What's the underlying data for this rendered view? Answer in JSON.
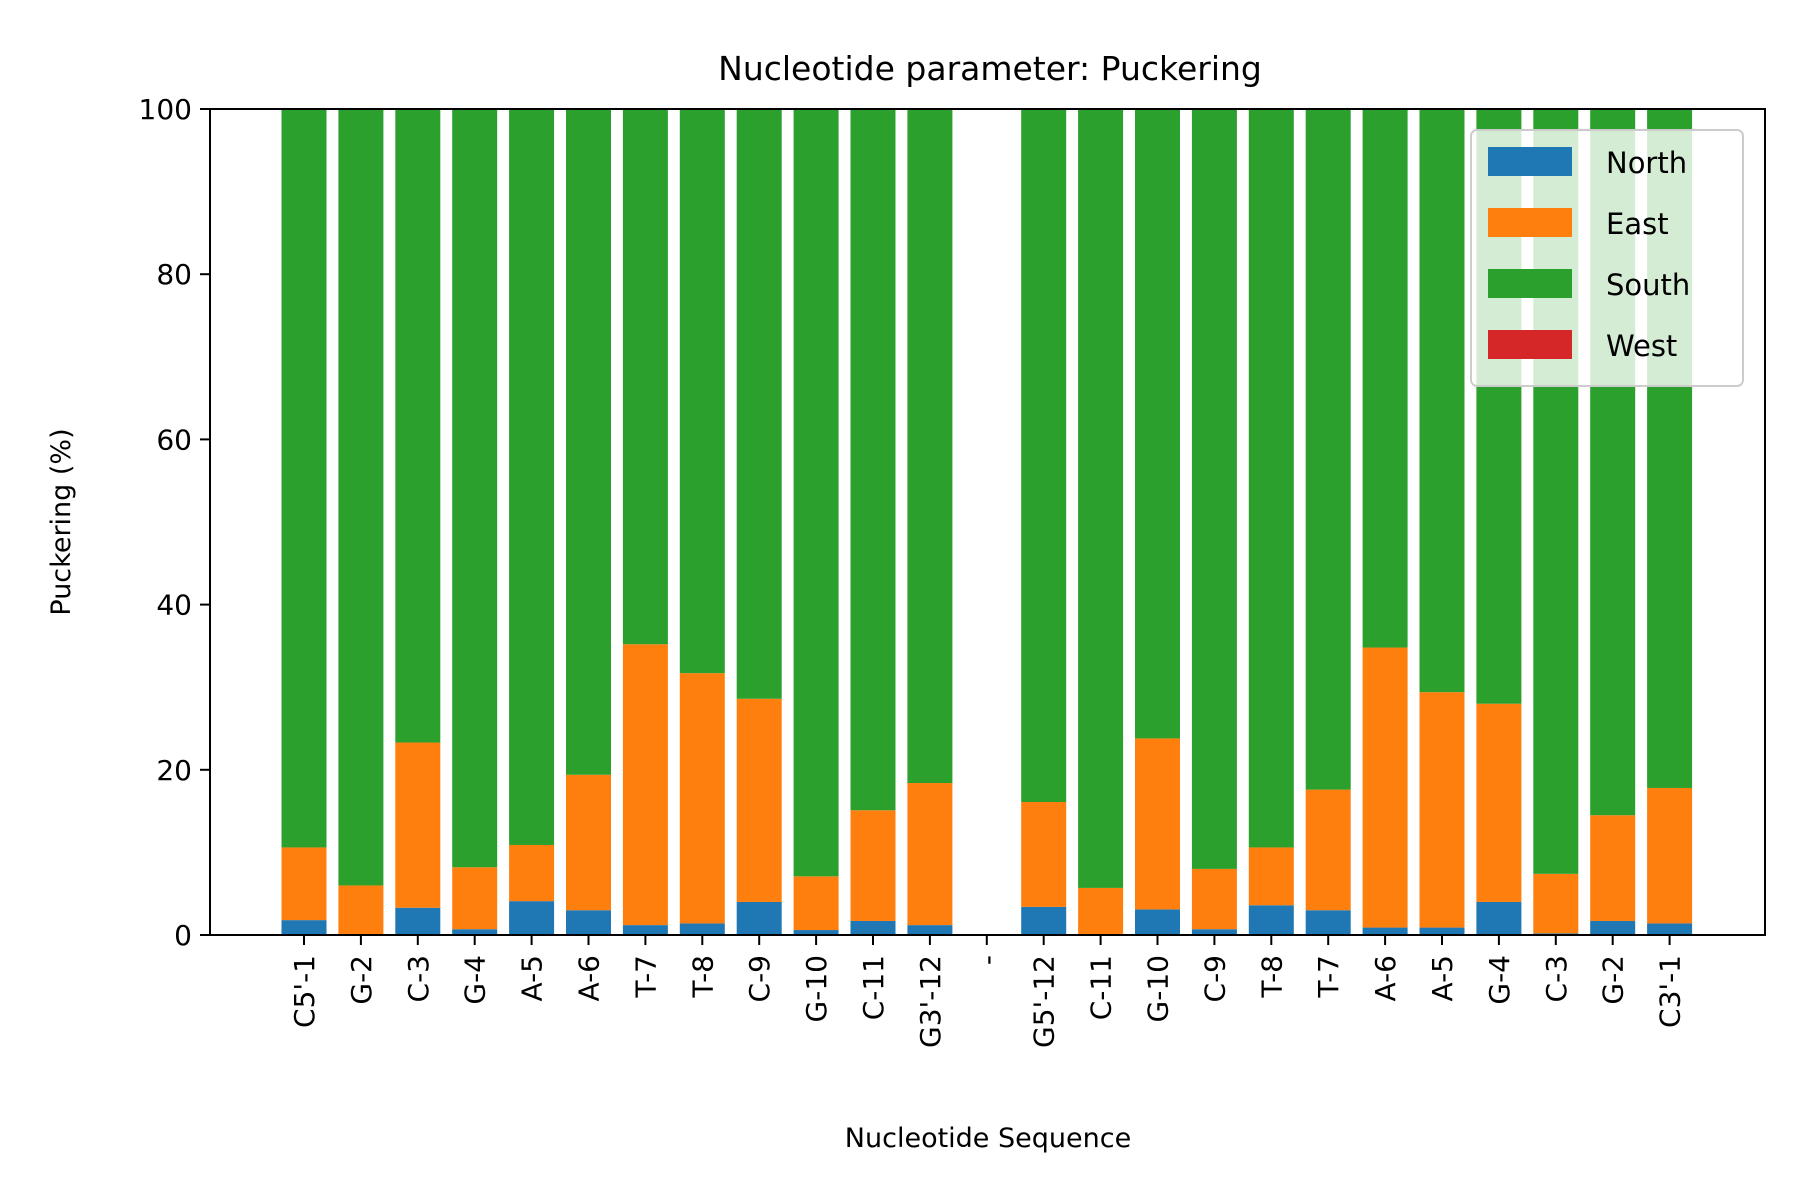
{
  "chart_data": {
    "type": "bar",
    "stacked": true,
    "title": "Nucleotide parameter: Puckering",
    "xlabel": "Nucleotide Sequence",
    "ylabel": "Puckering (%)",
    "ylim": [
      0,
      100
    ],
    "yticks": [
      "0",
      "20",
      "40",
      "60",
      "80",
      "100"
    ],
    "legend_position": "top-right",
    "categories": [
      "C5'-1",
      "G-2",
      "C-3",
      "G-4",
      "A-5",
      "A-6",
      "T-7",
      "T-8",
      "C-9",
      "G-10",
      "C-11",
      "G3'-12",
      "-",
      "G5'-12",
      "C-11",
      "G-10",
      "C-9",
      "T-8",
      "T-7",
      "A-6",
      "A-5",
      "G-4",
      "C-3",
      "G-2",
      "C3'-1"
    ],
    "series": [
      {
        "name": "North",
        "color": "#1f77b4",
        "values": [
          1.8,
          0,
          3.3,
          0.7,
          4.1,
          3.0,
          1.2,
          1.4,
          4.0,
          0.6,
          1.7,
          1.2,
          0,
          3.4,
          0,
          3.1,
          0.7,
          3.6,
          3.0,
          0.9,
          0.9,
          4.0,
          0.2,
          1.7,
          1.4
        ]
      },
      {
        "name": "East",
        "color": "#ff7f0e",
        "values": [
          8.8,
          6.0,
          20.0,
          7.5,
          6.8,
          16.4,
          34.0,
          30.3,
          24.6,
          6.5,
          13.4,
          17.2,
          0,
          12.7,
          5.7,
          20.7,
          7.3,
          7.0,
          14.6,
          33.9,
          28.5,
          24.0,
          7.2,
          12.8,
          16.4
        ]
      },
      {
        "name": "South",
        "color": "#2ca02c",
        "values": [
          89.4,
          94.0,
          76.7,
          91.8,
          89.1,
          80.6,
          64.8,
          68.3,
          71.4,
          92.9,
          84.9,
          81.6,
          0,
          83.9,
          94.3,
          76.2,
          92.0,
          89.4,
          82.4,
          65.2,
          70.6,
          72.0,
          92.6,
          85.5,
          82.2
        ]
      },
      {
        "name": "West",
        "color": "#d62728",
        "values": [
          0,
          0,
          0,
          0,
          0,
          0,
          0,
          0,
          0,
          0,
          0,
          0,
          0,
          0,
          0,
          0,
          0,
          0,
          0,
          0,
          0,
          0,
          0,
          0,
          0
        ]
      }
    ]
  }
}
